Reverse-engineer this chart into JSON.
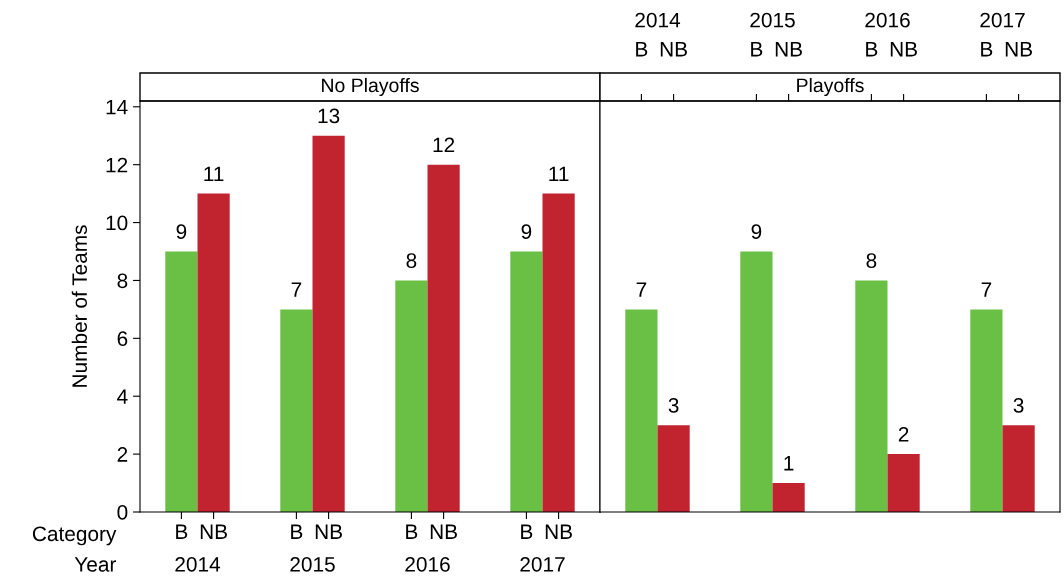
{
  "chart_data": [
    {
      "type": "bar",
      "title": "No Playoffs",
      "ylabel": "Number of Teams",
      "categories": [
        "2014",
        "2015",
        "2016",
        "2017"
      ],
      "series": [
        {
          "name": "B",
          "color": "#6abf45",
          "values": [
            9,
            7,
            8,
            9
          ]
        },
        {
          "name": "NB",
          "color": "#c1232f",
          "values": [
            11,
            13,
            12,
            11
          ]
        }
      ],
      "ylim": [
        0,
        14.2
      ],
      "yticks": [
        0,
        2,
        4,
        6,
        8,
        10,
        12,
        14
      ],
      "grid": false,
      "data_labels": true,
      "legend": false,
      "annotations": [
        "Category",
        "Year"
      ]
    },
    {
      "type": "bar",
      "title": "Playoffs",
      "categories": [
        "2014",
        "2015",
        "2016",
        "2017"
      ],
      "series": [
        {
          "name": "B",
          "color": "#6abf45",
          "values": [
            7,
            9,
            8,
            7
          ]
        },
        {
          "name": "NB",
          "color": "#c1232f",
          "values": [
            3,
            1,
            2,
            3
          ]
        }
      ],
      "ylim": [
        0,
        14.2
      ],
      "yticks": [
        0,
        2,
        4,
        6,
        8,
        10,
        12,
        14
      ],
      "grid": false,
      "data_labels": true,
      "legend": false,
      "tick_labels": "x"
    }
  ]
}
